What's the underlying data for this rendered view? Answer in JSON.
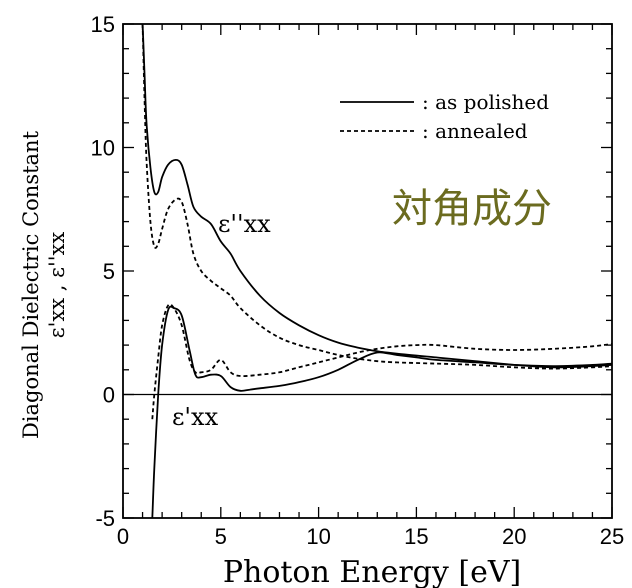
{
  "chart_data": {
    "type": "line",
    "xlabel": "Photon Energy [eV]",
    "ylabel_line1": "Diagonal Dielectric Constant",
    "ylabel_line2": "ε'xx , ε''xx",
    "xlim": [
      0,
      25
    ],
    "ylim": [
      -5,
      15
    ],
    "x_ticks": [
      "0",
      "5",
      "10",
      "15",
      "20",
      "25"
    ],
    "y_ticks": [
      "-5",
      "0",
      "5",
      "10",
      "15"
    ],
    "legend_position": "top-right",
    "legend": [
      {
        "label": ": as polished",
        "style": "solid"
      },
      {
        "label": ": annealed",
        "style": "dashed"
      }
    ],
    "annotations": {
      "eps_imag": "ε''xx",
      "eps_real": "ε'xx",
      "japanese_label": "対角成分"
    },
    "zero_line": true,
    "series": [
      {
        "name": "as polished",
        "component": "ε''xx",
        "style": "solid",
        "x": [
          1.0,
          1.1,
          1.2,
          1.4,
          1.6,
          1.8,
          2.0,
          2.3,
          2.7,
          3.0,
          3.3,
          3.6,
          4.0,
          4.5,
          5.0,
          5.5,
          6.0,
          7.0,
          8.0,
          9.0,
          10.0,
          11.0,
          12.0,
          13.0,
          14.0,
          16.0,
          18.0,
          20.0,
          22.0,
          24.0,
          25.0
        ],
        "y": [
          15.0,
          13.0,
          11.0,
          9.2,
          8.2,
          8.2,
          8.8,
          9.3,
          9.5,
          9.3,
          8.5,
          7.6,
          7.2,
          6.9,
          6.2,
          5.7,
          5.0,
          4.0,
          3.3,
          2.8,
          2.4,
          2.1,
          1.9,
          1.75,
          1.65,
          1.5,
          1.35,
          1.2,
          1.1,
          1.15,
          1.2
        ]
      },
      {
        "name": "annealed",
        "component": "ε''xx",
        "style": "dashed",
        "x": [
          1.0,
          1.1,
          1.2,
          1.4,
          1.6,
          1.8,
          2.0,
          2.3,
          2.7,
          3.0,
          3.3,
          3.6,
          4.0,
          4.5,
          5.0,
          5.5,
          6.0,
          7.0,
          8.0,
          9.0,
          10.0,
          11.0,
          12.0,
          13.0,
          14.0,
          16.0,
          18.0,
          20.0,
          22.0,
          24.0,
          25.0
        ],
        "y": [
          15.0,
          12.0,
          9.5,
          7.0,
          6.0,
          6.1,
          6.7,
          7.5,
          7.9,
          7.8,
          6.9,
          5.7,
          5.0,
          4.6,
          4.3,
          4.0,
          3.5,
          2.8,
          2.3,
          2.0,
          1.8,
          1.6,
          1.45,
          1.35,
          1.3,
          1.25,
          1.2,
          1.1,
          1.05,
          1.1,
          1.15
        ]
      },
      {
        "name": "as polished",
        "component": "ε'xx",
        "style": "solid",
        "x": [
          1.5,
          1.6,
          1.8,
          2.0,
          2.3,
          2.6,
          3.0,
          3.4,
          3.7,
          4.0,
          4.5,
          5.0,
          5.5,
          6.0,
          6.5,
          7.0,
          8.0,
          9.0,
          10.0,
          11.0,
          12.0,
          13.0,
          14.0,
          15.0,
          16.0,
          18.0,
          20.0,
          22.0,
          24.0,
          25.0
        ],
        "y": [
          -5.0,
          -3.0,
          0.0,
          2.0,
          3.4,
          3.5,
          3.2,
          1.8,
          0.8,
          0.7,
          0.8,
          0.75,
          0.3,
          0.15,
          0.2,
          0.25,
          0.35,
          0.5,
          0.7,
          1.0,
          1.4,
          1.7,
          1.6,
          1.5,
          1.4,
          1.3,
          1.2,
          1.15,
          1.2,
          1.25
        ]
      },
      {
        "name": "annealed",
        "component": "ε'xx",
        "style": "dashed",
        "x": [
          1.5,
          1.6,
          1.8,
          2.0,
          2.3,
          2.6,
          3.0,
          3.4,
          3.7,
          4.0,
          4.5,
          5.0,
          5.5,
          6.0,
          7.0,
          8.0,
          9.0,
          10.0,
          11.0,
          12.0,
          13.0,
          14.0,
          15.0,
          16.0,
          18.0,
          20.0,
          22.0,
          24.0,
          25.0
        ],
        "y": [
          -1.0,
          0.0,
          1.5,
          2.8,
          3.6,
          3.5,
          2.8,
          1.4,
          0.9,
          0.9,
          1.0,
          1.4,
          0.9,
          0.75,
          0.8,
          0.9,
          1.1,
          1.3,
          1.5,
          1.7,
          1.85,
          1.95,
          2.0,
          2.0,
          1.85,
          1.8,
          1.85,
          1.95,
          2.05
        ]
      }
    ]
  }
}
